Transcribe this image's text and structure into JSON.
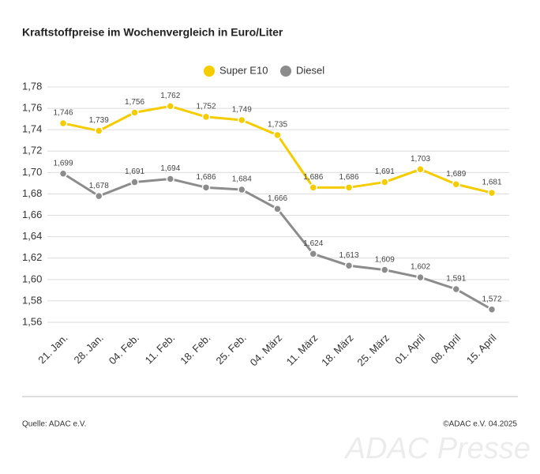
{
  "chart_data": {
    "type": "line",
    "title": "Kraftstoffpreise im Wochenvergleich in Euro/Liter",
    "categories": [
      "21. Jan.",
      "28. Jan.",
      "04. Feb.",
      "11. Feb.",
      "18. Feb.",
      "25. Feb.",
      "04. März",
      "11. März",
      "18. März",
      "25. März",
      "01. April",
      "08. April",
      "15. April"
    ],
    "series": [
      {
        "name": "Super E10",
        "color": "#f5cc00",
        "values": [
          1.746,
          1.739,
          1.756,
          1.762,
          1.752,
          1.749,
          1.735,
          1.686,
          1.686,
          1.691,
          1.703,
          1.689,
          1.681
        ],
        "value_labels": [
          "1,746",
          "1,739",
          "1,756",
          "1,762",
          "1,752",
          "1,749",
          "1,735",
          "1,686",
          "1,686",
          "1,691",
          "1,703",
          "1,689",
          "1,681"
        ]
      },
      {
        "name": "Diesel",
        "color": "#8c8c8c",
        "values": [
          1.699,
          1.678,
          1.691,
          1.694,
          1.686,
          1.684,
          1.666,
          1.624,
          1.613,
          1.609,
          1.602,
          1.591,
          1.572
        ],
        "value_labels": [
          "1,699",
          "1,678",
          "1,691",
          "1,694",
          "1,686",
          "1,684",
          "1,666",
          "1,624",
          "1,613",
          "1,609",
          "1,602",
          "1,591",
          "1,572"
        ]
      }
    ],
    "ylim": [
      1.56,
      1.78
    ],
    "yticks": [
      {
        "value": 1.56,
        "label": "1,56"
      },
      {
        "value": 1.58,
        "label": "1,58"
      },
      {
        "value": 1.6,
        "label": "1,60"
      },
      {
        "value": 1.62,
        "label": "1,62"
      },
      {
        "value": 1.64,
        "label": "1,64"
      },
      {
        "value": 1.66,
        "label": "1,66"
      },
      {
        "value": 1.68,
        "label": "1,68"
      },
      {
        "value": 1.7,
        "label": "1,70"
      },
      {
        "value": 1.72,
        "label": "1,72"
      },
      {
        "value": 1.74,
        "label": "1,74"
      },
      {
        "value": 1.76,
        "label": "1,76"
      },
      {
        "value": 1.78,
        "label": "1,78"
      }
    ],
    "grid": true,
    "legend": "top",
    "source": "Quelle: ADAC e.V.",
    "copyright": "©ADAC e.V. 04.2025",
    "watermark": "ADAC Presse"
  }
}
